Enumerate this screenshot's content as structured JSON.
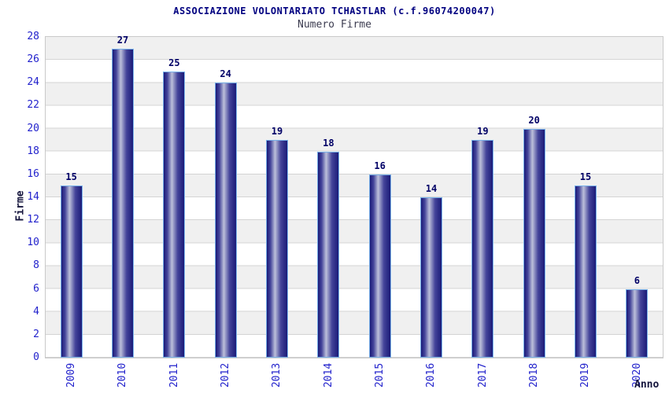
{
  "header": {
    "title": "ASSOCIAZIONE VOLONTARIATO TCHASTLAR (c.f.96074200047)",
    "subtitle": "Numero Firme"
  },
  "chart_data": {
    "type": "bar",
    "title": "ASSOCIAZIONE VOLONTARIATO TCHASTLAR (c.f.96074200047)",
    "subtitle": "Numero Firme",
    "categories": [
      "2009",
      "2010",
      "2011",
      "2012",
      "2013",
      "2014",
      "2015",
      "2016",
      "2017",
      "2018",
      "2019",
      "2020"
    ],
    "values": [
      15,
      27,
      25,
      24,
      19,
      18,
      16,
      14,
      19,
      20,
      15,
      6
    ],
    "xlabel": "Anno",
    "ylabel": "Firme",
    "ylim": [
      0,
      28
    ],
    "ytick_step": 2,
    "grid": true,
    "band_alternating": true,
    "legend": "none",
    "colors": {
      "title": "#000080",
      "subtitle": "#3c3c50",
      "tick_label": "#2222cc",
      "value_label": "#000066",
      "axis_title": "#14143c",
      "bar_dark": "#1b1b78",
      "bar_mid": "#44449a",
      "bar_light": "#bcc0da",
      "bar_border": "#79b2ea",
      "band_gray": "#f0f0f0",
      "band_white": "#ffffff",
      "gridline": "#d4d4d4",
      "frame": "#c9c9c9"
    }
  }
}
